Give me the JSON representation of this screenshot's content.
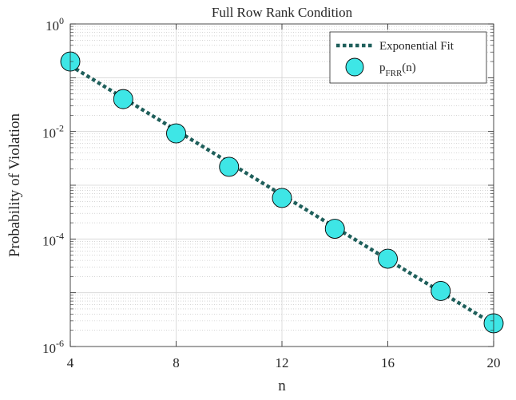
{
  "chart_data": {
    "type": "scatter",
    "title": "Full Row Rank Condition",
    "xlabel": "n",
    "ylabel": "Probability of Violation",
    "xlim": [
      4,
      20
    ],
    "ylim": [
      1e-06,
      1
    ],
    "yscale": "log",
    "grid": true,
    "minor_grid": true,
    "legend_position": "top-right",
    "x_ticks": [
      {
        "value": 4,
        "label": "4"
      },
      {
        "value": 8,
        "label": "8"
      },
      {
        "value": 12,
        "label": "12"
      },
      {
        "value": 16,
        "label": "16"
      },
      {
        "value": 20,
        "label": "20"
      }
    ],
    "y_ticks": [
      {
        "value": 1,
        "base": "10",
        "exp": "0"
      },
      {
        "value": 0.01,
        "base": "10",
        "exp": "-2"
      },
      {
        "value": 0.0001,
        "base": "10",
        "exp": "-4"
      },
      {
        "value": 1e-06,
        "base": "10",
        "exp": "-6"
      }
    ],
    "series": [
      {
        "name": "Exponential Fit",
        "kind": "line",
        "style": "dotted",
        "color": "#1f5f5b",
        "x": [
          4,
          20
        ],
        "y": [
          0.168,
          2.6e-06
        ]
      },
      {
        "name_main": "p",
        "name_sub": "FRR",
        "name_suffix": "(n)",
        "kind": "marker",
        "color": "#3ee6e6",
        "edge_color": "#000000",
        "x": [
          4,
          6,
          8,
          10,
          12,
          14,
          16,
          18,
          20
        ],
        "y": [
          0.2,
          0.04,
          0.0092,
          0.0022,
          0.00058,
          0.000155,
          4.3e-05,
          1.08e-05,
          2.7e-06
        ]
      }
    ]
  }
}
